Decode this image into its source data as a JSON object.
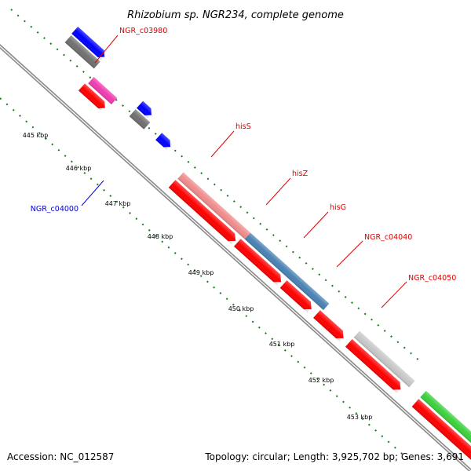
{
  "title": "Rhizobium sp. NGR234, complete genome",
  "footer": {
    "accession": "Accession: NC_012587",
    "topology": "Topology: circular; Length: 3,925,702 bp; Genes: 3,691"
  },
  "colors": {
    "backbone": "#8c8c8c",
    "tick": "#1a7a1a",
    "label_red": "#e00000",
    "label_blue": "#0000cc"
  },
  "ticks": [
    "445 kbp",
    "446 kbp",
    "447 kbp",
    "448 kbp",
    "449 kbp",
    "450 kbp",
    "451 kbp",
    "452 kbp",
    "453 kbp"
  ],
  "gene_labels": [
    {
      "name": "NGR_c03980",
      "color": "#e00000"
    },
    {
      "name": "hisS",
      "color": "#e00000"
    },
    {
      "name": "hisZ",
      "color": "#e00000"
    },
    {
      "name": "hisG",
      "color": "#e00000"
    },
    {
      "name": "NGR_c04040",
      "color": "#e00000"
    },
    {
      "name": "NGR_c04050",
      "color": "#e00000"
    },
    {
      "name": "NGR_c04000",
      "color": "#0000cc"
    }
  ]
}
